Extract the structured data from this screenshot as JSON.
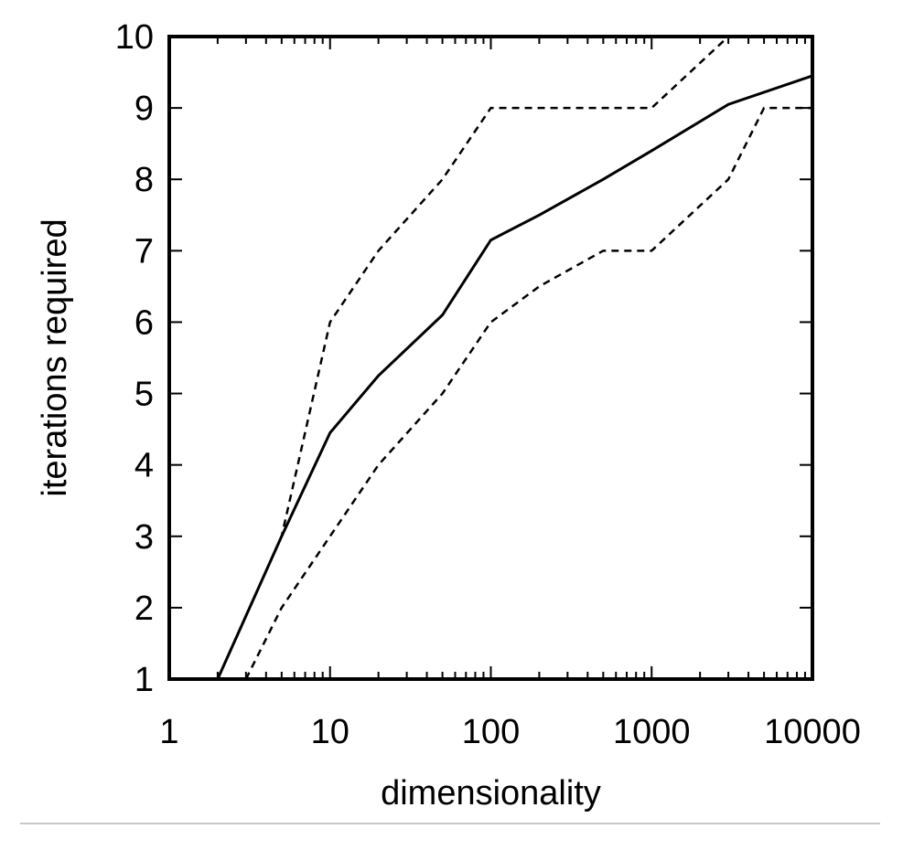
{
  "chart_data": {
    "type": "line",
    "title": "",
    "xlabel": "dimensionality",
    "ylabel": "iterations required",
    "x_scale": "log",
    "xlim": [
      1,
      10000
    ],
    "ylim": [
      1,
      10
    ],
    "x_ticks": [
      1,
      10,
      100,
      1000,
      10000
    ],
    "x_tick_labels": [
      "1",
      "10",
      "100",
      "1000",
      "10000"
    ],
    "y_ticks": [
      1,
      2,
      3,
      4,
      5,
      6,
      7,
      8,
      9,
      10
    ],
    "y_tick_labels": [
      "1",
      "2",
      "3",
      "4",
      "5",
      "6",
      "7",
      "8",
      "9",
      "10"
    ],
    "grid": false,
    "legend": "none",
    "series": [
      {
        "style": "solid",
        "color": "#000000",
        "points": [
          [
            2,
            1
          ],
          [
            5,
            3
          ],
          [
            10,
            4.45
          ],
          [
            20,
            5.25
          ],
          [
            50,
            6.1
          ],
          [
            100,
            7.15
          ],
          [
            200,
            7.5
          ],
          [
            500,
            8.0
          ],
          [
            1000,
            8.4
          ],
          [
            3000,
            9.05
          ],
          [
            10000,
            9.45
          ]
        ]
      },
      {
        "style": "dashed",
        "color": "#000000",
        "points": [
          [
            3,
            1
          ],
          [
            5,
            2
          ],
          [
            10,
            3
          ],
          [
            20,
            4
          ],
          [
            50,
            5
          ],
          [
            100,
            6
          ],
          [
            200,
            6.5
          ],
          [
            500,
            7
          ],
          [
            1000,
            7
          ],
          [
            3000,
            8
          ],
          [
            5000,
            9
          ],
          [
            10000,
            9
          ]
        ]
      },
      {
        "style": "dashed",
        "color": "#000000",
        "points": [
          [
            2,
            1
          ],
          [
            5,
            3
          ],
          [
            10,
            6
          ],
          [
            20,
            7
          ],
          [
            50,
            8
          ],
          [
            100,
            9
          ],
          [
            200,
            9
          ],
          [
            500,
            9
          ],
          [
            1000,
            9
          ],
          [
            3000,
            10
          ],
          [
            10000,
            10
          ]
        ]
      }
    ]
  }
}
